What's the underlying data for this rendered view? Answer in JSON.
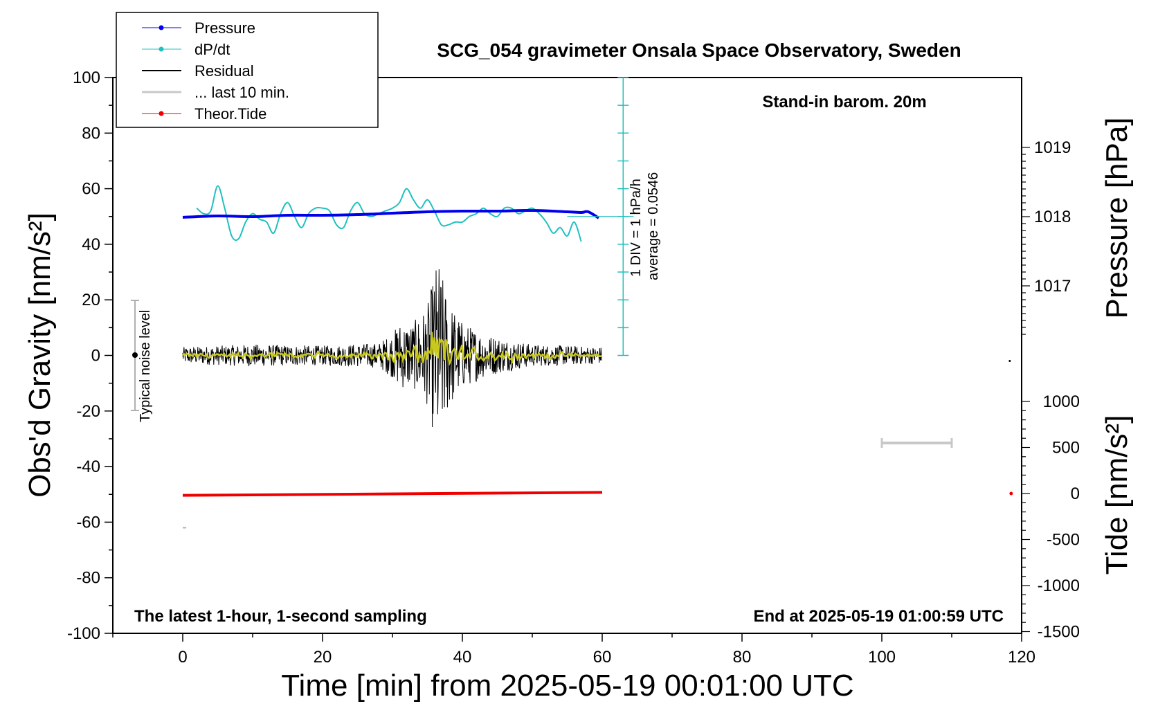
{
  "chart_data": {
    "type": "line",
    "title": "SCG_054 gravimeter Onsala Space Observatory, Sweden",
    "xlabel": "Time [min] from 2025-05-19 00:01:00 UTC",
    "ylabel_left": "Obs'd Gravity [nm/s²]",
    "ylabel_right_top": "Pressure [hPa]",
    "ylabel_right_bottom": "Tide [nm/s²]",
    "xlim": [
      -10,
      120
    ],
    "ylim": [
      -100,
      100
    ],
    "x_ticks": [
      "0",
      "20",
      "40",
      "60",
      "80",
      "100",
      "120"
    ],
    "y_ticks": [
      "100",
      "80",
      "60",
      "40",
      "20",
      "0",
      "-20",
      "-40",
      "-60",
      "-80",
      "-100"
    ],
    "pressure_ticks": [
      "1019",
      "1018",
      "1017"
    ],
    "tide_ticks": [
      "1000",
      "500",
      "0",
      "-500",
      "-1000",
      "-1500"
    ],
    "legend": {
      "position": "top-left",
      "entries": [
        "Pressure",
        "dP/dt",
        "Residual",
        "... last 10 min.",
        "Theor.Tide"
      ]
    },
    "annotations": {
      "barometer": "Stand-in barom. 20m",
      "sampling": "The latest 1-hour, 1-second sampling",
      "end_time": "End at 2025-05-19 01:00:59 UTC",
      "noise": "Typical noise level",
      "dpdt_scale": "1 DIV = 1 hPa/h",
      "dpdt_average": "average = 0.0546"
    },
    "series": [
      {
        "name": "Pressure",
        "color": "#0000ee",
        "axis": "pressure_hPa",
        "x": [
          0,
          5,
          10,
          15,
          20,
          25,
          30,
          35,
          40,
          45,
          50,
          55,
          57,
          58,
          59.5
        ],
        "values": [
          1017.99,
          1018.01,
          1018.0,
          1018.02,
          1018.02,
          1018.03,
          1018.05,
          1018.07,
          1018.08,
          1018.08,
          1018.09,
          1018.07,
          1018.06,
          1018.07,
          1017.98
        ]
      },
      {
        "name": "dP/dt",
        "color": "#20c0c0",
        "axis": "gravity_div",
        "x": [
          2,
          3,
          4,
          5,
          6,
          7,
          8,
          9,
          10,
          11,
          12,
          13,
          14,
          15,
          16,
          17,
          18,
          19,
          20,
          21,
          22,
          23,
          24,
          25,
          26,
          27,
          28,
          29,
          30,
          31,
          32,
          33,
          34,
          35,
          36,
          37,
          38,
          39,
          40,
          41,
          42,
          43,
          44,
          45,
          46,
          47,
          48,
          49,
          50,
          51,
          52,
          53,
          54,
          55,
          56,
          57
        ],
        "values": [
          53,
          51,
          52,
          61,
          53,
          43,
          42,
          48,
          51,
          49,
          48,
          44,
          51,
          55,
          50,
          46,
          51,
          53,
          53,
          52,
          47,
          46,
          52,
          55,
          51,
          50,
          51,
          52,
          53,
          55,
          60,
          56,
          53,
          56,
          52,
          47,
          47,
          48,
          48,
          50,
          51,
          53,
          51,
          50,
          53,
          53,
          51,
          52,
          53,
          51,
          48,
          44,
          46,
          43,
          48,
          41
        ]
      },
      {
        "name": "Residual",
        "color": "#000000",
        "axis": "gravity",
        "envelope": {
          "x": [
            0,
            10,
            20,
            28,
            30,
            31,
            33,
            35,
            36,
            36.5,
            37,
            38,
            40,
            43,
            46,
            50,
            55,
            60
          ],
          "amplitude": [
            3,
            4,
            3.5,
            4.5,
            8,
            12,
            12,
            18,
            30,
            36,
            30,
            20,
            12,
            8,
            6,
            4,
            3.5,
            3
          ]
        }
      },
      {
        "name": "... last 10 min.",
        "color": "#c8c8c8",
        "axis": "gravity"
      },
      {
        "name": "Theor.Tide",
        "color": "#ee0000",
        "axis": "tide_nm_s2",
        "x": [
          0,
          60
        ],
        "values": [
          -20,
          12
        ]
      }
    ]
  }
}
